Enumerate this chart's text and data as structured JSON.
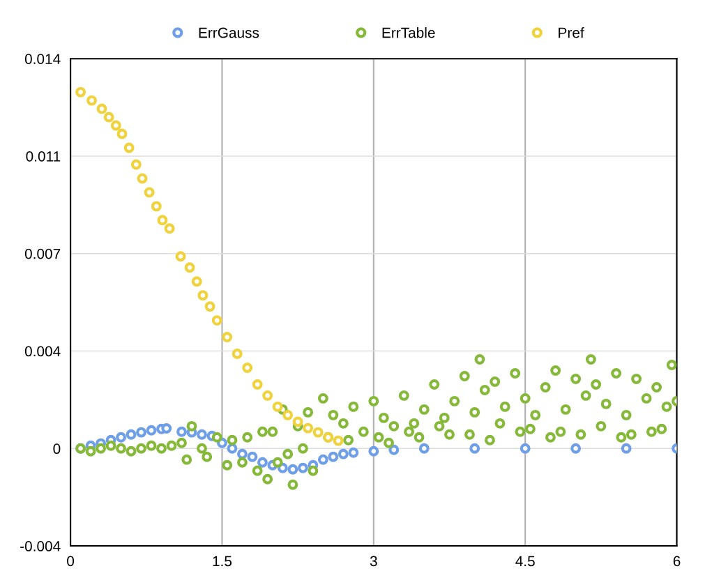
{
  "chart_data": {
    "type": "scatter",
    "marker": "circle",
    "grid": true,
    "legend": "top",
    "xlim": [
      0,
      6
    ],
    "xticks": [
      0,
      1.5,
      3,
      4.5,
      6
    ],
    "ylim": [
      -0.0035,
      0.014
    ],
    "yticks": [
      {
        "value": -0.0035,
        "label": "-0.004"
      },
      0,
      {
        "value": 0.0035,
        "label": "0.004"
      },
      0.007,
      {
        "value": 0.0105,
        "label": "0.011"
      },
      0.014
    ],
    "series": [
      {
        "name": "ErrGauss",
        "color": "#6f9fe6",
        "x": [
          0.1,
          0.2,
          0.3,
          0.4,
          0.5,
          0.6,
          0.7,
          0.8,
          0.9,
          0.95,
          1.1,
          1.2,
          1.3,
          1.4,
          1.5,
          1.6,
          1.7,
          1.8,
          1.9,
          2.0,
          2.1,
          2.2,
          2.3,
          2.4,
          2.5,
          2.6,
          2.7,
          2.8,
          3.0,
          3.2,
          3.5,
          4.0,
          4.5,
          5.0,
          5.5,
          6.0
        ],
        "values": [
          0.0,
          0.0001,
          0.00018,
          0.0003,
          0.0004,
          0.0005,
          0.00058,
          0.00065,
          0.0007,
          0.00072,
          0.0006,
          0.00058,
          0.0005,
          0.00045,
          0.0002,
          0.0,
          -0.0002,
          -0.0003,
          -0.0005,
          -0.0006,
          -0.0007,
          -0.00075,
          -0.0007,
          -0.0006,
          -0.0004,
          -0.0003,
          -0.0002,
          -0.00015,
          -0.0001,
          -5e-05,
          0.0,
          0.0,
          0.0,
          0.0,
          0.0,
          0.0
        ]
      },
      {
        "name": "ErrTable",
        "color": "#86b93a",
        "x": [
          0.1,
          0.2,
          0.3,
          0.4,
          0.5,
          0.6,
          0.7,
          0.8,
          0.9,
          1.0,
          1.1,
          1.15,
          1.2,
          1.3,
          1.35,
          1.45,
          1.55,
          1.6,
          1.7,
          1.75,
          1.85,
          1.9,
          1.95,
          2.0,
          2.05,
          2.1,
          2.15,
          2.2,
          2.25,
          2.3,
          2.35,
          2.4,
          2.5,
          2.55,
          2.6,
          2.7,
          2.8,
          2.9,
          3.0,
          3.1,
          3.2,
          3.3,
          3.4,
          3.5,
          3.6,
          3.7,
          3.8,
          3.9,
          4.0,
          4.05,
          4.1,
          4.2,
          4.3,
          4.4,
          4.5,
          4.6,
          4.7,
          4.8,
          4.9,
          5.0,
          5.1,
          5.15,
          5.2,
          5.3,
          5.4,
          5.5,
          5.6,
          5.7,
          5.8,
          5.9,
          5.95,
          6.0,
          3.05,
          3.35,
          3.65,
          3.95,
          4.25,
          4.55,
          4.85,
          5.25,
          5.55,
          5.85,
          2.75,
          3.15,
          3.45,
          3.75,
          4.15,
          4.45,
          4.75,
          5.05,
          5.45,
          5.75
        ],
        "values": [
          0.0,
          -0.0001,
          0.0,
          0.0001,
          0.0,
          -0.0001,
          0.0,
          0.0001,
          0.0,
          0.0001,
          0.0002,
          -0.0004,
          0.0008,
          0.0,
          -0.0003,
          0.0004,
          -0.0006,
          0.0003,
          -0.0005,
          0.0004,
          -0.0008,
          0.0006,
          -0.0011,
          0.0006,
          -0.0005,
          0.0014,
          -0.0002,
          -0.0013,
          0.0008,
          0.0,
          0.0013,
          -0.0008,
          0.0018,
          0.0004,
          0.0012,
          0.0009,
          0.0015,
          0.0006,
          0.0017,
          0.0011,
          0.0008,
          0.0019,
          0.0009,
          0.0014,
          0.0023,
          0.0011,
          0.0017,
          0.0026,
          0.0013,
          0.0032,
          0.0021,
          0.0024,
          0.0015,
          0.0027,
          0.0018,
          0.0012,
          0.0022,
          0.0028,
          0.0014,
          0.0025,
          0.0019,
          0.0032,
          0.0023,
          0.0016,
          0.0027,
          0.0012,
          0.0025,
          0.0018,
          0.0022,
          0.0015,
          0.003,
          0.0017,
          0.0004,
          0.0006,
          0.0008,
          0.0005,
          0.0009,
          0.0007,
          0.0006,
          0.0008,
          0.0005,
          0.0007,
          0.0003,
          0.0002,
          0.0004,
          0.0005,
          0.0003,
          0.0006,
          0.0004,
          0.0005,
          0.0004,
          0.0006
        ]
      },
      {
        "name": "Pref",
        "color": "#f0d33c",
        "x": [
          0.1,
          0.21,
          0.31,
          0.38,
          0.45,
          0.51,
          0.58,
          0.65,
          0.71,
          0.78,
          0.85,
          0.91,
          0.98,
          1.09,
          1.18,
          1.25,
          1.31,
          1.38,
          1.45,
          1.55,
          1.65,
          1.75,
          1.85,
          1.95,
          2.05,
          2.15,
          2.25,
          2.35,
          2.45,
          2.55,
          2.65
        ],
        "values": [
          0.0128,
          0.0125,
          0.0122,
          0.0119,
          0.0116,
          0.0113,
          0.0108,
          0.0102,
          0.0097,
          0.0092,
          0.0087,
          0.0082,
          0.0079,
          0.0069,
          0.0065,
          0.006,
          0.0055,
          0.0051,
          0.0046,
          0.004,
          0.0034,
          0.0029,
          0.0023,
          0.0019,
          0.0015,
          0.0012,
          0.00096,
          0.00073,
          0.00058,
          0.0004,
          0.00028
        ]
      }
    ]
  }
}
